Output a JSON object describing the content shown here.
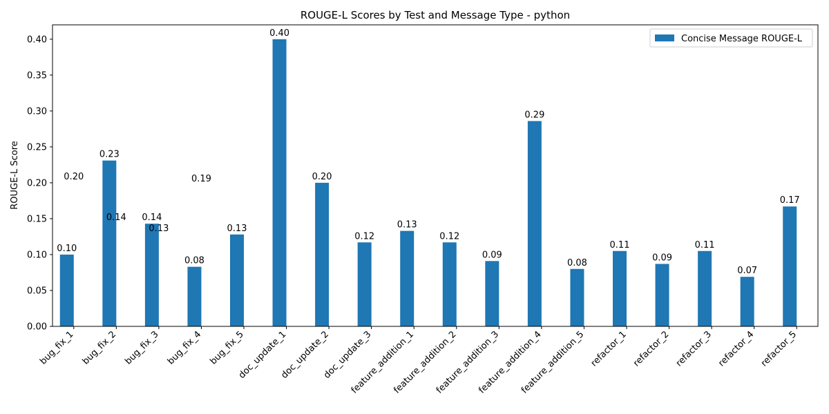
{
  "chart_data": {
    "type": "bar",
    "title": "ROUGE-L Scores by Test and Message Type - python",
    "xlabel": "",
    "ylabel": "ROUGE-L Score",
    "ylim": [
      0,
      0.42
    ],
    "yticks": [
      "0.00",
      "0.05",
      "0.10",
      "0.15",
      "0.20",
      "0.25",
      "0.30",
      "0.35",
      "0.40"
    ],
    "grid": false,
    "legend_position": "top-right",
    "categories": [
      "bug_fix_1",
      "bug_fix_2",
      "bug_fix_3",
      "bug_fix_4",
      "bug_fix_5",
      "doc_update_1",
      "doc_update_2",
      "doc_update_3",
      "feature_addition_1",
      "feature_addition_2",
      "feature_addition_3",
      "feature_addition_4",
      "feature_addition_5",
      "refactor_1",
      "refactor_2",
      "refactor_3",
      "refactor_4",
      "refactor_5"
    ],
    "series": [
      {
        "name": "Concise Message ROUGE-L",
        "color": "#1f77b4",
        "values": [
          0.1,
          0.231,
          0.143,
          0.083,
          0.128,
          0.4,
          0.2,
          0.117,
          0.133,
          0.117,
          0.091,
          0.286,
          0.08,
          0.105,
          0.087,
          0.105,
          0.069,
          0.167
        ],
        "labels": [
          "0.10",
          "0.23",
          "0.14",
          "0.08",
          "0.13",
          "0.40",
          "0.20",
          "0.12",
          "0.13",
          "0.12",
          "0.09",
          "0.29",
          "0.08",
          "0.11",
          "0.09",
          "0.11",
          "0.07",
          "0.17"
        ]
      }
    ],
    "stray_annotations": [
      {
        "text": "0.20",
        "category": "bug_fix_1",
        "value": 0.2
      },
      {
        "text": "0.14",
        "category": "bug_fix_2",
        "value": 0.143
      },
      {
        "text": "0.13",
        "category": "bug_fix_3",
        "value": 0.128
      },
      {
        "text": "0.19",
        "category": "bug_fix_4",
        "value": 0.197
      }
    ]
  }
}
